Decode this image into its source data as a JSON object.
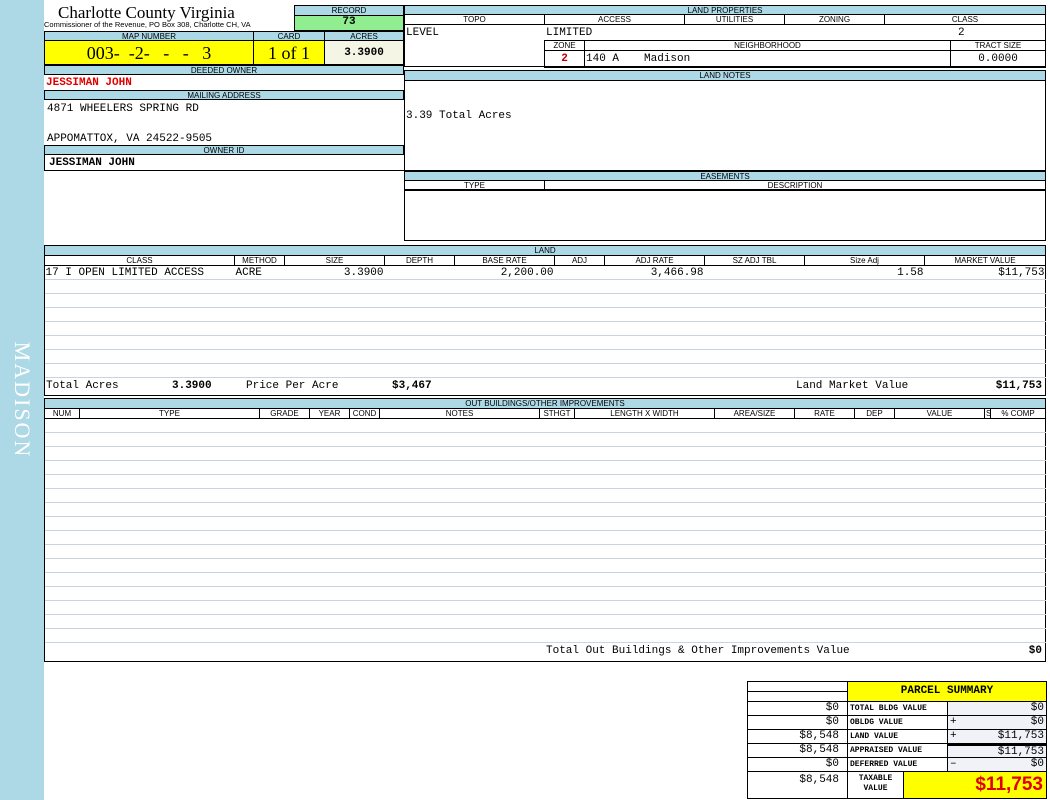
{
  "sidebar": {
    "label": "MADISON"
  },
  "header": {
    "county": "Charlotte County Virginia",
    "office": "Commissioner of the Revenue, PO Box 308, Charlotte CH, VA",
    "record_label": "RECORD",
    "record": "73",
    "map_label": "MAP NUMBER",
    "map_number": "003-  -2-   -   -   3",
    "card_label": "CARD",
    "card": "1 of 1",
    "acres_label": "ACRES",
    "acres": "3.3900"
  },
  "owner": {
    "deeded_label": "DEEDED OWNER",
    "deeded": "JESSIMAN JOHN",
    "mailing_label": "MAILING ADDRESS",
    "address1": "4871 WHEELERS SPRING RD",
    "address2": "APPOMATTOX, VA 24522-9505",
    "id_label": "OWNER ID",
    "owner_id": "JESSIMAN JOHN"
  },
  "land_properties": {
    "title": "LAND PROPERTIES",
    "columns": [
      "TOPO",
      "ACCESS",
      "UTILITIES",
      "ZONING",
      "CLASS"
    ],
    "topo": "LEVEL",
    "access": "LIMITED",
    "utilities": "",
    "zoning": "",
    "class": "2",
    "zone_label": "ZONE",
    "neighborhood_label": "NEIGHBORHOOD",
    "tract_label": "TRACT SIZE",
    "zone": "2",
    "neighborhood_code": "140 A",
    "neighborhood": "Madison",
    "tract_size": "0.0000"
  },
  "land_notes": {
    "title": "LAND NOTES",
    "text": "3.39 Total Acres"
  },
  "easements": {
    "title": "EASEMENTS",
    "columns": [
      "TYPE",
      "DESCRIPTION"
    ]
  },
  "land": {
    "title": "LAND",
    "columns": [
      "CLASS",
      "METHOD",
      "SIZE",
      "DEPTH",
      "BASE RATE",
      "ADJ",
      "ADJ RATE",
      "SZ ADJ TBL",
      "Size Adj",
      "MARKET VALUE"
    ],
    "rows": [
      [
        "17 I OPEN LIMITED ACCESS",
        "ACRE",
        "3.3900",
        "",
        "2,200.00",
        "",
        "3,466.98",
        "",
        "1.58",
        "$11,753"
      ]
    ],
    "total_acres_label": "Total Acres",
    "total_acres": "3.3900",
    "ppa_label": "Price Per Acre",
    "ppa": "$3,467",
    "lmv_label": "Land Market Value",
    "lmv": "$11,753"
  },
  "outbuildings": {
    "title": "OUT BUILDINGS/OTHER IMPROVEMENTS",
    "columns": [
      "NUM",
      "TYPE",
      "GRADE",
      "YEAR",
      "COND",
      "NOTES",
      "STHGT",
      "LENGTH X WIDTH",
      "AREA/SIZE",
      "RATE",
      "DEP",
      "VALUE",
      "S",
      "% COMP"
    ],
    "total_label": "Total Out Buildings & Other Improvements Value",
    "total": "$0"
  },
  "summary": {
    "title": "PARCEL SUMMARY",
    "rows": [
      {
        "prior": "$0",
        "label": "TOTAL BLDG VALUE",
        "op": "",
        "value": "$0"
      },
      {
        "prior": "$0",
        "label": "OBLDG VALUE",
        "op": "+",
        "value": "$0"
      },
      {
        "prior": "$8,548",
        "label": "LAND VALUE",
        "op": "+",
        "value": "$11,753"
      },
      {
        "prior": "$8,548",
        "label": "APPRAISED VALUE",
        "op": "",
        "value": "$11,753"
      },
      {
        "prior": "$0",
        "label": "DEFERRED VALUE",
        "op": "–",
        "value": "$0"
      }
    ],
    "taxable_prior": "$8,548",
    "taxable_label": "TAXABLE VALUE",
    "taxable": "$11,753"
  }
}
